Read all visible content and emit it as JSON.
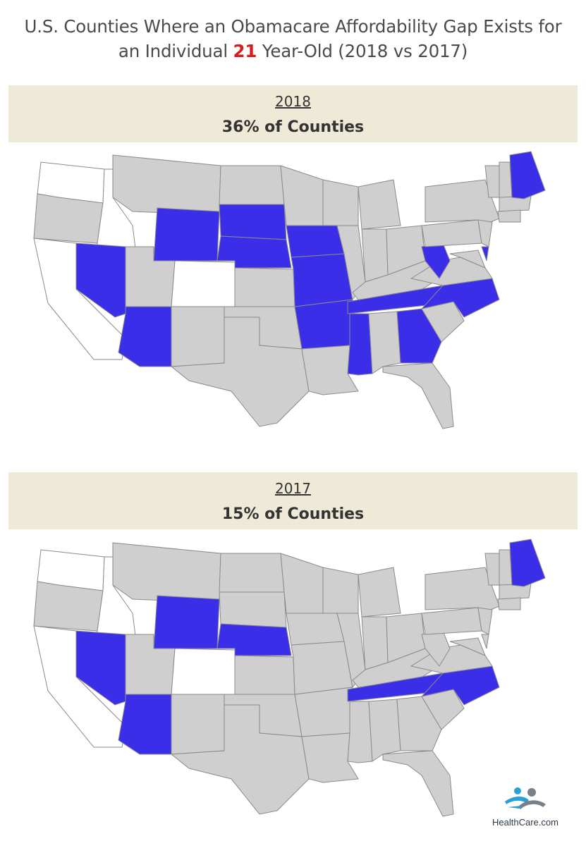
{
  "title": {
    "line1": "U.S. Counties Where an Obamacare Affordability Gap Exists for",
    "line2_before": "an Individual ",
    "line2_highlight": "21",
    "line2_after": " Year-Old (2018 vs 2017)"
  },
  "colors": {
    "gap": "#3a2ee8",
    "no_gap": "#cfcfcf",
    "no_data": "#ffffff",
    "border": "#8a8a8a",
    "band": "#efe9d8",
    "highlight": "#d41e1e"
  },
  "maps": [
    {
      "year": "2018",
      "share": "36% of Counties",
      "gap_states": [
        "Wyoming",
        "Nebraska",
        "Iowa",
        "South Dakota",
        "Nevada",
        "Arizona",
        "Missouri",
        "Arkansas",
        "Mississippi",
        "Tennessee",
        "North Carolina",
        "Georgia",
        "West Virginia",
        "Maine",
        "Delaware"
      ]
    },
    {
      "year": "2017",
      "share": "15% of Counties",
      "gap_states": [
        "Wyoming",
        "Nebraska",
        "Nevada",
        "Arizona",
        "Tennessee",
        "North Carolina",
        "Maine"
      ]
    }
  ],
  "logo": {
    "icon": "healthcare-logo-icon",
    "brand": "HealthCare",
    "suffix": ".com"
  }
}
